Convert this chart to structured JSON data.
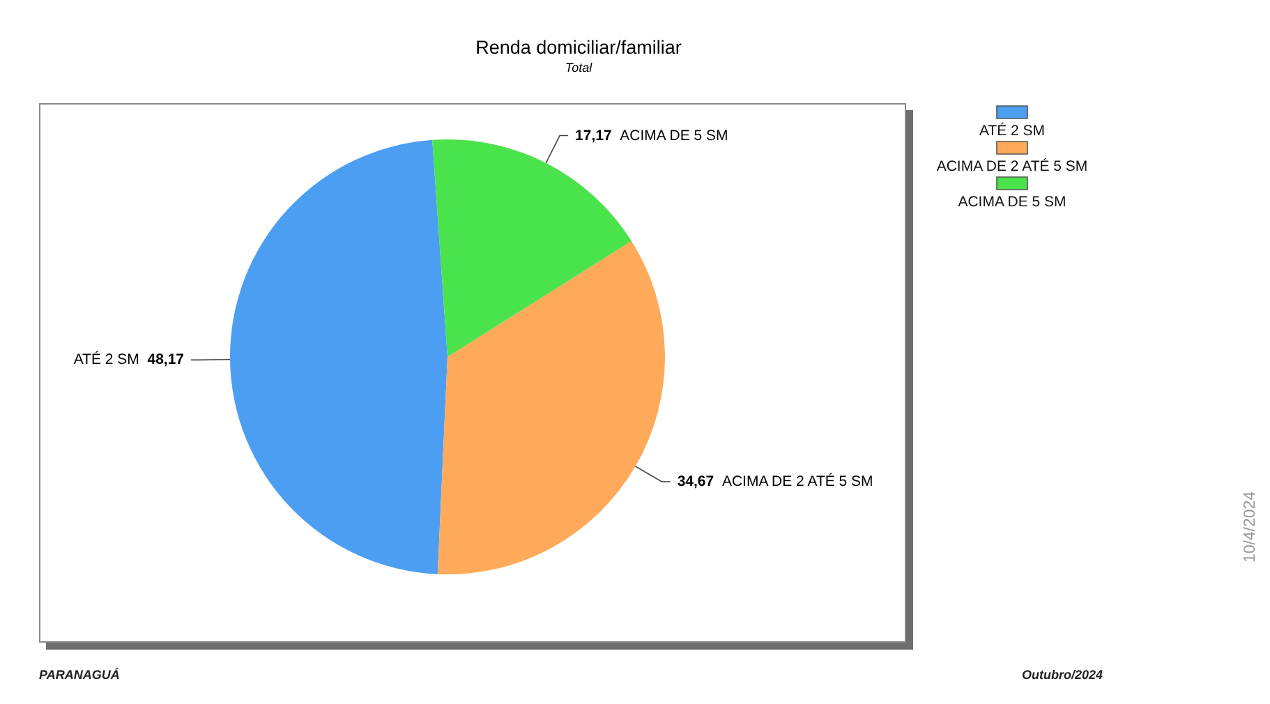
{
  "chart_data": {
    "type": "pie",
    "title": "Renda domiciliar/familiar",
    "subtitle": "Total",
    "categories": [
      "ATÉ 2 SM",
      "ACIMA DE 2 ATÉ 5 SM",
      "ACIMA DE 5 SM"
    ],
    "values": [
      48.17,
      34.67,
      17.17
    ],
    "value_labels": [
      "48,17",
      "34,67",
      "17,17"
    ],
    "colors": [
      "#4b9ef2",
      "#ffaa5a",
      "#4be34b"
    ],
    "legend": "top right",
    "annotations": [
      "PARANAGUÁ",
      "Outubro/2024",
      "10/4/2024"
    ]
  }
}
